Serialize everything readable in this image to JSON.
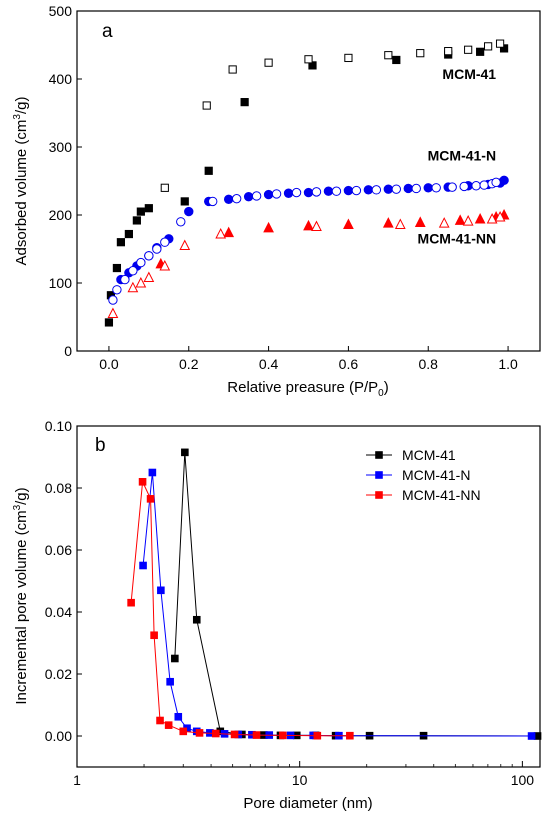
{
  "chart_data": [
    {
      "type": "scatter",
      "panel_label": "a",
      "xlabel_main": "Relative preasure (P/P",
      "xlabel_sub": "0",
      "xlabel_end": ")",
      "ylabel_main": "Adsorbed volume (cm",
      "ylabel_sup": "3",
      "ylabel_end": "/g)",
      "xlim": [
        -0.08,
        1.08
      ],
      "ylim": [
        0,
        500
      ],
      "xticks": [
        0.0,
        0.2,
        0.4,
        0.6,
        0.8,
        1.0
      ],
      "xtick_labels": [
        "0.0",
        "0.2",
        "0.4",
        "0.6",
        "0.8",
        "1.0"
      ],
      "yticks": [
        0,
        100,
        200,
        300,
        400,
        500
      ],
      "ytick_labels": [
        "0",
        "100",
        "200",
        "300",
        "400",
        "500"
      ],
      "annotations": [
        {
          "name": "mcm41",
          "text": "MCM-41",
          "x": 0.97,
          "y": 400
        },
        {
          "name": "mcm41n",
          "text": "MCM-41-N",
          "x": 0.97,
          "y": 280
        },
        {
          "name": "mcm41nn",
          "text": "MCM-41-NN",
          "x": 0.97,
          "y": 158
        }
      ],
      "series": [
        {
          "marker": "square",
          "fill": "filled",
          "color": "#000000",
          "x": [
            0.0,
            0.005,
            0.02,
            0.03,
            0.05,
            0.07,
            0.08,
            0.1,
            0.19,
            0.25,
            0.34,
            0.51,
            0.72,
            0.85,
            0.93,
            0.99
          ],
          "y": [
            42,
            82,
            122,
            160,
            172,
            192,
            205,
            210,
            220,
            265,
            366,
            420,
            428,
            436,
            440,
            445
          ]
        },
        {
          "marker": "square",
          "fill": "open",
          "color": "#000000",
          "x": [
            0.14,
            0.245,
            0.31,
            0.4,
            0.5,
            0.6,
            0.7,
            0.78,
            0.85,
            0.9,
            0.95,
            0.98
          ],
          "y": [
            240,
            361,
            414,
            424,
            429,
            431,
            435,
            438,
            441,
            443,
            448,
            452
          ]
        },
        {
          "marker": "circle",
          "fill": "filled",
          "color": "#0000ee",
          "x": [
            0.03,
            0.05,
            0.07,
            0.1,
            0.12,
            0.15,
            0.2,
            0.25,
            0.3,
            0.35,
            0.4,
            0.45,
            0.5,
            0.55,
            0.6,
            0.65,
            0.7,
            0.75,
            0.8,
            0.85,
            0.9,
            0.95,
            0.98,
            0.99
          ],
          "y": [
            105,
            115,
            125,
            140,
            152,
            165,
            205,
            220,
            223,
            227,
            230,
            232,
            233,
            235,
            236,
            237,
            238,
            239,
            240,
            241,
            243,
            245,
            247,
            251
          ]
        },
        {
          "marker": "circle",
          "fill": "open",
          "color": "#0000ee",
          "x": [
            0.01,
            0.02,
            0.04,
            0.06,
            0.08,
            0.1,
            0.12,
            0.14,
            0.18,
            0.26,
            0.32,
            0.37,
            0.42,
            0.47,
            0.52,
            0.57,
            0.62,
            0.67,
            0.72,
            0.77,
            0.82,
            0.86,
            0.89,
            0.92,
            0.94,
            0.96,
            0.97
          ],
          "y": [
            75,
            90,
            105,
            118,
            130,
            140,
            150,
            160,
            190,
            220,
            224,
            228,
            231,
            233,
            234,
            235,
            236,
            237,
            238,
            239,
            240,
            241,
            242,
            243,
            244,
            246,
            248
          ]
        },
        {
          "marker": "triangle",
          "fill": "filled",
          "color": "#ff0000",
          "x": [
            0.13,
            0.3,
            0.4,
            0.5,
            0.6,
            0.7,
            0.78,
            0.88,
            0.93,
            0.97,
            0.99
          ],
          "y": [
            128,
            174,
            181,
            184,
            186,
            188,
            189,
            192,
            194,
            197,
            200
          ]
        },
        {
          "marker": "triangle",
          "fill": "open",
          "color": "#ff0000",
          "x": [
            0.01,
            0.06,
            0.08,
            0.1,
            0.14,
            0.19,
            0.28,
            0.52,
            0.73,
            0.84,
            0.9,
            0.96,
            0.98
          ],
          "y": [
            55,
            93,
            100,
            108,
            125,
            155,
            172,
            183,
            186,
            188,
            191,
            194,
            197
          ]
        }
      ]
    },
    {
      "type": "line",
      "panel_label": "b",
      "xscale": "log",
      "xlabel": "Pore diameter (nm)",
      "ylabel_main": "Incremental pore volume (cm",
      "ylabel_sup": "3",
      "ylabel_end": "/g)",
      "xlim": [
        1,
        120
      ],
      "ylim": [
        -0.01,
        0.1
      ],
      "xticks": [
        1,
        10,
        100
      ],
      "xtick_labels": [
        "1",
        "10",
        "100"
      ],
      "yticks": [
        0.0,
        0.02,
        0.04,
        0.06,
        0.08,
        0.1
      ],
      "ytick_labels": [
        "0.00",
        "0.02",
        "0.04",
        "0.06",
        "0.08",
        "0.10"
      ],
      "legend_position": "top-right",
      "series": [
        {
          "name": "MCM-41",
          "color": "#000000",
          "x": [
            2.75,
            3.05,
            3.45,
            4.4,
            5.5,
            6.9,
            8.2,
            9.7,
            11.8,
            14.5,
            20.6,
            36,
            117
          ],
          "y": [
            0.025,
            0.0915,
            0.0375,
            0.0015,
            0.0005,
            0.0003,
            0.0002,
            0.0002,
            0.0002,
            0.0001,
            0.0001,
            0.0001,
            0.0
          ]
        },
        {
          "name": "MCM-41-N",
          "color": "#0000ff",
          "x": [
            1.98,
            2.18,
            2.38,
            2.62,
            2.85,
            3.12,
            3.45,
            3.95,
            4.6,
            5.3,
            6.1,
            7.3,
            9.1,
            11.5,
            15,
            110
          ],
          "y": [
            0.055,
            0.085,
            0.047,
            0.0175,
            0.0062,
            0.0025,
            0.0015,
            0.001,
            0.0007,
            0.0005,
            0.0004,
            0.0003,
            0.0002,
            0.0002,
            0.0001,
            0.0
          ]
        },
        {
          "name": "MCM-41-NN",
          "color": "#ff0000",
          "x": [
            1.75,
            1.97,
            2.14,
            2.22,
            2.36,
            2.58,
            3.0,
            3.55,
            4.2,
            5.1,
            6.4,
            8.4,
            12,
            16.8
          ],
          "y": [
            0.043,
            0.082,
            0.0765,
            0.0325,
            0.005,
            0.0035,
            0.0015,
            0.001,
            0.0008,
            0.0005,
            0.0003,
            0.0002,
            0.0001,
            0.0001
          ]
        }
      ]
    }
  ]
}
